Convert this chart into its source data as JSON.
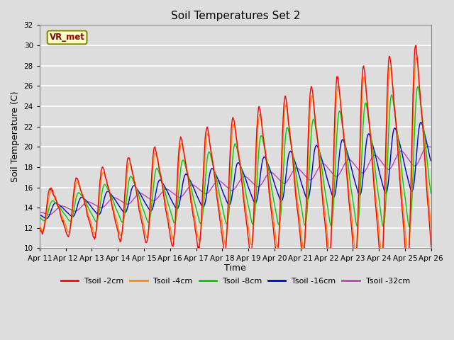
{
  "title": "Soil Temperatures Set 2",
  "xlabel": "Time",
  "ylabel": "Soil Temperature (C)",
  "ylim": [
    10,
    32
  ],
  "yticks": [
    10,
    12,
    14,
    16,
    18,
    20,
    22,
    24,
    26,
    28,
    30,
    32
  ],
  "bg_color": "#dddddd",
  "plot_bg": "#dddddd",
  "grid_color": "#ffffff",
  "series_colors": {
    "Tsoil -2cm": "#ff0000",
    "Tsoil -4cm": "#ff8800",
    "Tsoil -8cm": "#00cc00",
    "Tsoil -16cm": "#0000cc",
    "Tsoil -32cm": "#bb44bb"
  },
  "watermark": "VR_met",
  "watermark_color": "#880000",
  "watermark_bg": "#ffffcc",
  "watermark_border": "#888800",
  "xtick_labels": [
    "Apr 11",
    "Apr 12",
    "Apr 13",
    "Apr 14",
    "Apr 15",
    "Apr 16",
    "Apr 17",
    "Apr 18",
    "Apr 19",
    "Apr 20",
    "Apr 21",
    "Apr 22",
    "Apr 23",
    "Apr 24",
    "Apr 25",
    "Apr 26"
  ]
}
